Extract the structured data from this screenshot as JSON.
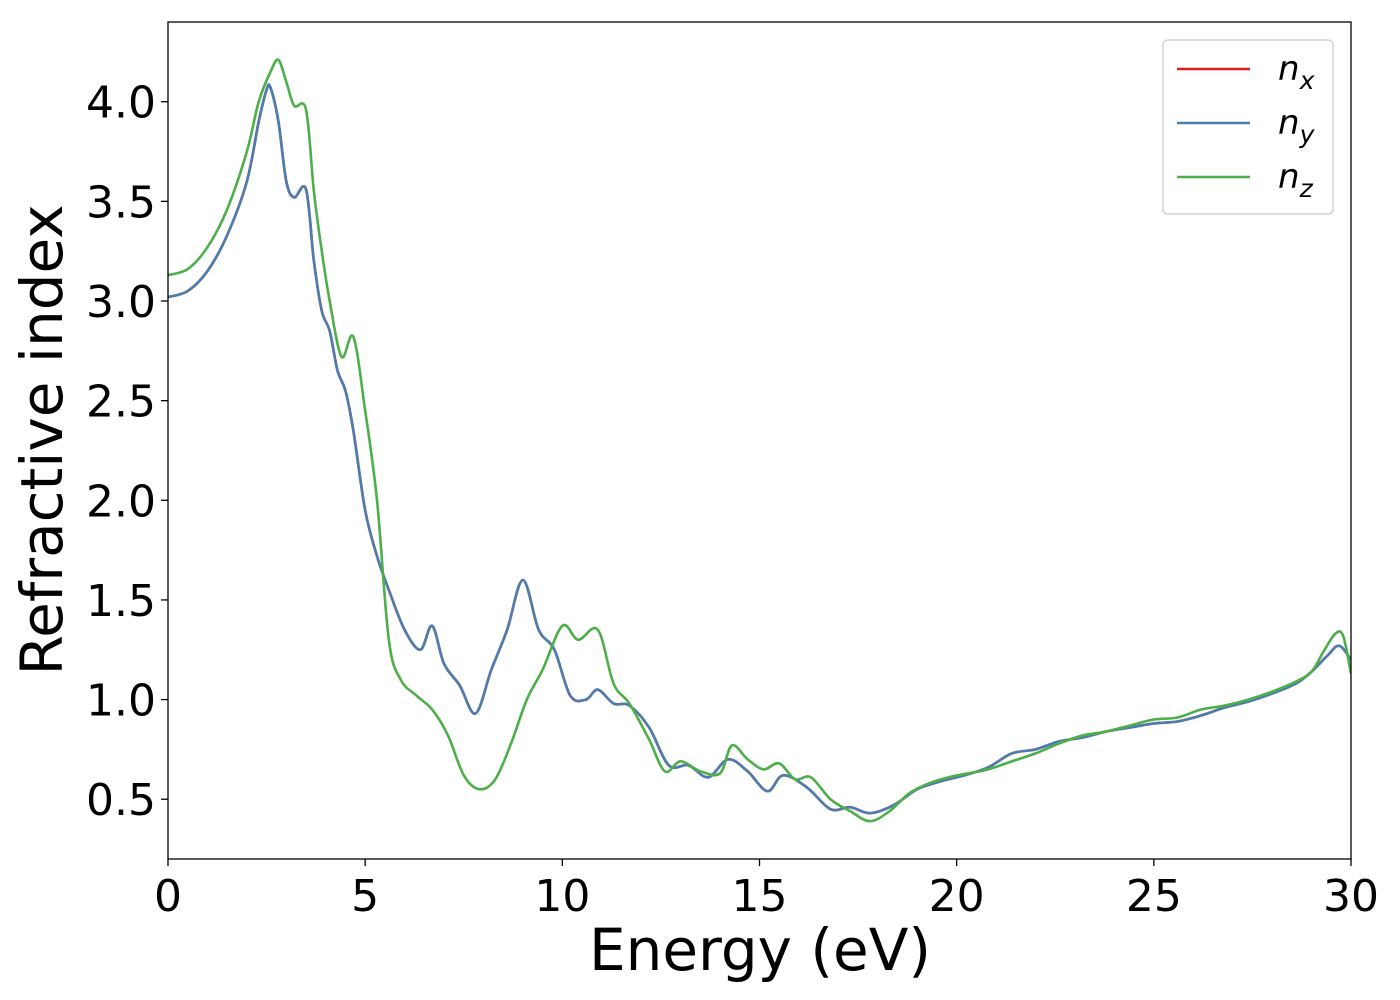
{
  "chart_data": {
    "type": "line",
    "xlabel": "Energy (eV)",
    "ylabel": "Refractive index",
    "xlim": [
      0,
      30
    ],
    "ylim": [
      0.2,
      4.4
    ],
    "xticks": [
      0,
      5,
      10,
      15,
      20,
      25,
      30
    ],
    "xtick_labels": [
      "0",
      "5",
      "10",
      "15",
      "20",
      "25",
      "30"
    ],
    "yticks": [
      0.5,
      1.0,
      1.5,
      2.0,
      2.5,
      3.0,
      3.5,
      4.0
    ],
    "ytick_labels": [
      "0.5",
      "1.0",
      "1.5",
      "2.0",
      "2.5",
      "3.0",
      "3.5",
      "4.0"
    ],
    "grid": false,
    "legend": {
      "placement": "top-right"
    },
    "series": [
      {
        "name": "n_x",
        "label_base": "n",
        "label_sub": "x",
        "color": "#e41a1c",
        "x": [
          0,
          0.5,
          1,
          1.5,
          2,
          2.3,
          2.5,
          2.6,
          2.8,
          3.0,
          3.2,
          3.5,
          3.7,
          3.9,
          4.1,
          4.3,
          4.5,
          4.7,
          5.0,
          5.3,
          5.6,
          6.0,
          6.4,
          6.7,
          7.0,
          7.4,
          7.8,
          8.2,
          8.6,
          9.0,
          9.4,
          9.8,
          10.2,
          10.6,
          10.9,
          11.3,
          11.7,
          12.2,
          12.7,
          13.2,
          13.7,
          14.2,
          14.7,
          15.2,
          15.6,
          16.2,
          16.8,
          17.3,
          17.8,
          18.4,
          19.0,
          19.6,
          20.2,
          20.8,
          21.4,
          22.0,
          22.6,
          23.2,
          23.8,
          24.4,
          25.0,
          25.6,
          26.2,
          26.8,
          27.4,
          28.0,
          28.6,
          29.0,
          29.4,
          29.7,
          30.0
        ],
        "y": [
          3.02,
          3.05,
          3.15,
          3.33,
          3.6,
          3.9,
          4.06,
          4.07,
          3.9,
          3.6,
          3.52,
          3.56,
          3.2,
          2.95,
          2.85,
          2.65,
          2.55,
          2.35,
          1.95,
          1.72,
          1.55,
          1.35,
          1.25,
          1.37,
          1.18,
          1.07,
          0.93,
          1.15,
          1.35,
          1.6,
          1.35,
          1.25,
          1.02,
          1.0,
          1.05,
          0.98,
          0.97,
          0.86,
          0.67,
          0.67,
          0.61,
          0.7,
          0.64,
          0.54,
          0.62,
          0.56,
          0.45,
          0.46,
          0.43,
          0.47,
          0.55,
          0.59,
          0.62,
          0.66,
          0.73,
          0.75,
          0.79,
          0.81,
          0.84,
          0.86,
          0.88,
          0.89,
          0.92,
          0.96,
          0.99,
          1.03,
          1.08,
          1.14,
          1.22,
          1.27,
          1.2
        ]
      },
      {
        "name": "n_y",
        "label_base": "n",
        "label_sub": "y",
        "color": "#4a7eb0",
        "x": [
          0,
          0.5,
          1,
          1.5,
          2,
          2.3,
          2.5,
          2.6,
          2.8,
          3.0,
          3.2,
          3.5,
          3.7,
          3.9,
          4.1,
          4.3,
          4.5,
          4.7,
          5.0,
          5.3,
          5.6,
          6.0,
          6.4,
          6.7,
          7.0,
          7.4,
          7.8,
          8.2,
          8.6,
          9.0,
          9.4,
          9.8,
          10.2,
          10.6,
          10.9,
          11.3,
          11.7,
          12.2,
          12.7,
          13.2,
          13.7,
          14.2,
          14.7,
          15.2,
          15.6,
          16.2,
          16.8,
          17.3,
          17.8,
          18.4,
          19.0,
          19.6,
          20.2,
          20.8,
          21.4,
          22.0,
          22.6,
          23.2,
          23.8,
          24.4,
          25.0,
          25.6,
          26.2,
          26.8,
          27.4,
          28.0,
          28.6,
          29.0,
          29.4,
          29.7,
          30.0
        ],
        "y": [
          3.02,
          3.05,
          3.15,
          3.33,
          3.6,
          3.9,
          4.06,
          4.07,
          3.9,
          3.6,
          3.52,
          3.56,
          3.2,
          2.95,
          2.85,
          2.65,
          2.55,
          2.35,
          1.95,
          1.72,
          1.55,
          1.35,
          1.25,
          1.37,
          1.18,
          1.07,
          0.93,
          1.15,
          1.35,
          1.6,
          1.35,
          1.25,
          1.02,
          1.0,
          1.05,
          0.98,
          0.97,
          0.86,
          0.67,
          0.67,
          0.61,
          0.7,
          0.64,
          0.54,
          0.62,
          0.56,
          0.45,
          0.46,
          0.43,
          0.47,
          0.55,
          0.59,
          0.62,
          0.66,
          0.73,
          0.75,
          0.79,
          0.81,
          0.84,
          0.86,
          0.88,
          0.89,
          0.92,
          0.96,
          0.99,
          1.03,
          1.08,
          1.14,
          1.22,
          1.27,
          1.2
        ]
      },
      {
        "name": "n_z",
        "label_base": "n",
        "label_sub": "z",
        "color": "#4daf4a",
        "x": [
          0,
          0.5,
          1,
          1.5,
          2,
          2.3,
          2.6,
          2.8,
          3.0,
          3.2,
          3.5,
          3.7,
          3.9,
          4.1,
          4.4,
          4.7,
          5.0,
          5.3,
          5.6,
          5.9,
          6.3,
          6.7,
          7.1,
          7.5,
          7.9,
          8.3,
          8.7,
          9.1,
          9.5,
          10.0,
          10.4,
          10.9,
          11.3,
          11.7,
          12.2,
          12.6,
          13.0,
          13.5,
          14.0,
          14.3,
          14.7,
          15.1,
          15.5,
          15.9,
          16.3,
          16.8,
          17.3,
          17.8,
          18.3,
          18.8,
          19.3,
          19.8,
          20.3,
          20.8,
          21.4,
          22.0,
          22.6,
          23.2,
          23.8,
          24.4,
          25.0,
          25.6,
          26.2,
          26.8,
          27.4,
          28.0,
          28.6,
          29.0,
          29.3,
          29.6,
          29.8,
          30.0
        ],
        "y": [
          3.13,
          3.16,
          3.27,
          3.46,
          3.75,
          4.0,
          4.15,
          4.21,
          4.1,
          3.98,
          3.96,
          3.55,
          3.25,
          3.0,
          2.72,
          2.82,
          2.45,
          2.0,
          1.3,
          1.1,
          1.02,
          0.95,
          0.82,
          0.62,
          0.55,
          0.6,
          0.78,
          1.0,
          1.15,
          1.37,
          1.3,
          1.35,
          1.08,
          0.98,
          0.8,
          0.64,
          0.69,
          0.64,
          0.63,
          0.77,
          0.7,
          0.65,
          0.68,
          0.6,
          0.61,
          0.5,
          0.44,
          0.39,
          0.44,
          0.53,
          0.58,
          0.61,
          0.63,
          0.65,
          0.69,
          0.73,
          0.78,
          0.82,
          0.84,
          0.87,
          0.9,
          0.91,
          0.95,
          0.97,
          1.0,
          1.04,
          1.09,
          1.14,
          1.24,
          1.33,
          1.32,
          1.13
        ]
      }
    ]
  }
}
